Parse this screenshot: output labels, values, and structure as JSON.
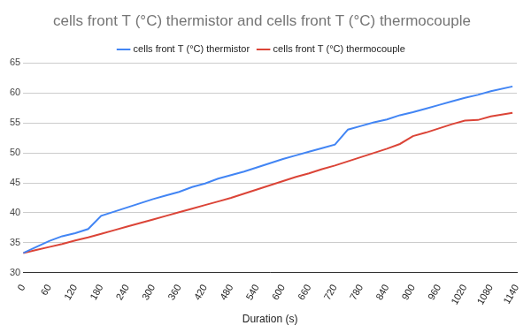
{
  "chart_data": {
    "type": "line",
    "title": "cells front T (°C) thermistor and cells front T (°C) thermocouple",
    "x_label": "Duration (s)",
    "x": [
      0,
      30,
      60,
      90,
      120,
      150,
      180,
      210,
      240,
      270,
      300,
      330,
      360,
      390,
      420,
      450,
      480,
      510,
      540,
      570,
      600,
      630,
      660,
      690,
      720,
      750,
      780,
      810,
      840,
      870,
      900,
      930,
      960,
      990,
      1020,
      1050,
      1080,
      1130
    ],
    "series": [
      {
        "name": "cells front T (°C) thermistor",
        "color": "#4285f4",
        "values": [
          33.3,
          34.3,
          35.3,
          36.1,
          36.6,
          37.3,
          39.5,
          40.2,
          40.9,
          41.6,
          42.3,
          42.9,
          43.5,
          44.3,
          44.9,
          45.7,
          46.3,
          46.9,
          47.6,
          48.3,
          49.0,
          49.6,
          50.2,
          50.8,
          51.4,
          53.9,
          54.5,
          55.1,
          55.6,
          56.3,
          56.8,
          57.4,
          58.0,
          58.6,
          59.2,
          59.7,
          60.3,
          61.1
        ]
      },
      {
        "name": "cells front T (°C) thermocouple",
        "color": "#db4437",
        "values": [
          33.3,
          33.8,
          34.3,
          34.8,
          35.4,
          35.9,
          36.5,
          37.1,
          37.7,
          38.3,
          38.9,
          39.5,
          40.1,
          40.7,
          41.3,
          41.9,
          42.5,
          43.2,
          43.9,
          44.6,
          45.3,
          46.0,
          46.6,
          47.3,
          47.9,
          48.6,
          49.3,
          50.0,
          50.7,
          51.5,
          52.8,
          53.4,
          54.1,
          54.8,
          55.4,
          55.5,
          56.1,
          56.7
        ]
      }
    ],
    "xlim": [
      0,
      1140
    ],
    "xticks": [
      0,
      60,
      120,
      180,
      240,
      300,
      360,
      420,
      480,
      540,
      600,
      660,
      720,
      780,
      840,
      900,
      960,
      1020,
      1080,
      1140
    ],
    "ylim": [
      30,
      65
    ],
    "yticks": [
      30,
      35,
      40,
      45,
      50,
      55,
      60,
      65
    ],
    "grid": true,
    "legend": "top"
  }
}
